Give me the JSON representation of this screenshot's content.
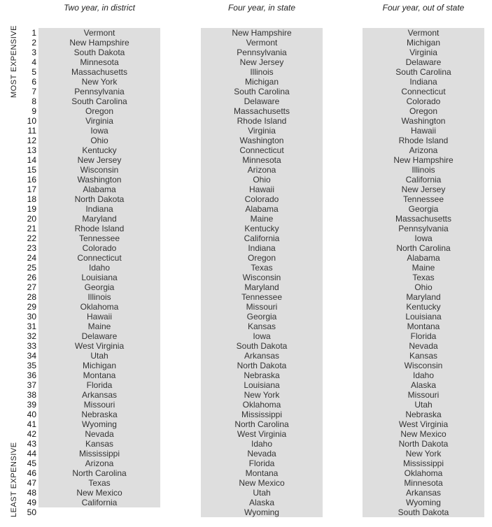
{
  "chart_data": {
    "type": "table",
    "side_labels": {
      "top": "MOST EXPENSIVE",
      "bottom": "LEAST EXPENSIVE"
    },
    "ranks": [
      1,
      2,
      3,
      4,
      5,
      6,
      7,
      8,
      9,
      10,
      11,
      12,
      13,
      14,
      15,
      16,
      17,
      18,
      19,
      20,
      21,
      22,
      23,
      24,
      25,
      26,
      27,
      28,
      29,
      30,
      31,
      32,
      33,
      34,
      35,
      36,
      37,
      38,
      39,
      40,
      41,
      42,
      43,
      44,
      45,
      46,
      47,
      48,
      49,
      50
    ],
    "columns": [
      {
        "title": "Two year, in district",
        "values": [
          "Vermont",
          "New Hampshire",
          "South Dakota",
          "Minnesota",
          "Massachusetts",
          "New York",
          "Pennsylvania",
          "South Carolina",
          "Oregon",
          "Virginia",
          "Iowa",
          "Ohio",
          "Kentucky",
          "New Jersey",
          "Wisconsin",
          "Washington",
          "Alabama",
          "North Dakota",
          "Indiana",
          "Maryland",
          "Rhode Island",
          "Tennessee",
          "Colorado",
          "Connecticut",
          "Idaho",
          "Louisiana",
          "Georgia",
          "Illinois",
          "Oklahoma",
          "Hawaii",
          "Maine",
          "Delaware",
          "West Virginia",
          "Utah",
          "Michigan",
          "Montana",
          "Florida",
          "Arkansas",
          "Missouri",
          "Nebraska",
          "Wyoming",
          "Nevada",
          "Kansas",
          "Mississippi",
          "Arizona",
          "North Carolina",
          "Texas",
          "New Mexico",
          "California",
          ""
        ]
      },
      {
        "title": "Four year, in state",
        "values": [
          "New Hampshire",
          "Vermont",
          "Pennsylvania",
          "New Jersey",
          "Illinois",
          "Michigan",
          "South Carolina",
          "Delaware",
          "Massachusetts",
          "Rhode Island",
          "Virginia",
          "Washington",
          "Connecticut",
          "Minnesota",
          "Arizona",
          "Ohio",
          "Hawaii",
          "Colorado",
          "Alabama",
          "Maine",
          "Kentucky",
          "California",
          "Indiana",
          "Oregon",
          "Texas",
          "Wisconsin",
          "Maryland",
          "Tennessee",
          "Missouri",
          "Georgia",
          "Kansas",
          "Iowa",
          "South Dakota",
          "Arkansas",
          "North Dakota",
          "Nebraska",
          "Louisiana",
          "New York",
          "Oklahoma",
          "Mississippi",
          "North Carolina",
          "West Virginia",
          "Idaho",
          "Nevada",
          "Florida",
          "Montana",
          "New Mexico",
          "Utah",
          "Alaska",
          "Wyoming"
        ]
      },
      {
        "title": "Four year, out of state",
        "values": [
          "Vermont",
          "Michigan",
          "Virginia",
          "Delaware",
          "South Carolina",
          "Indiana",
          "Connecticut",
          "Colorado",
          "Oregon",
          "Washington",
          "Hawaii",
          "Rhode Island",
          "Arizona",
          "New Hampshire",
          "Illinois",
          "California",
          "New Jersey",
          "Tennessee",
          "Georgia",
          "Massachusetts",
          "Pennsylvania",
          "Iowa",
          "North Carolina",
          "Alabama",
          "Maine",
          "Texas",
          "Ohio",
          "Maryland",
          "Kentucky",
          "Louisiana",
          "Montana",
          "Florida",
          "Nevada",
          "Kansas",
          "Wisconsin",
          "Idaho",
          "Alaska",
          "Missouri",
          "Utah",
          "Nebraska",
          "West Virginia",
          "New Mexico",
          "North Dakota",
          "New York",
          "Mississippi",
          "Oklahoma",
          "Minnesota",
          "Arkansas",
          "Wyoming",
          "South Dakota"
        ]
      }
    ]
  }
}
